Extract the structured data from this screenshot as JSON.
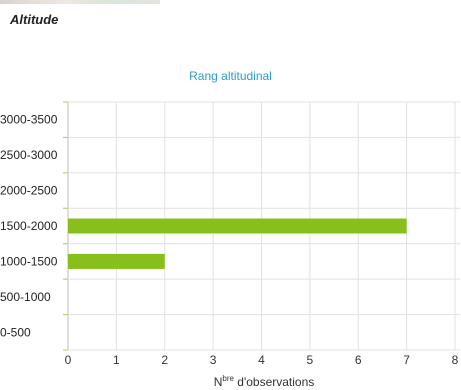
{
  "header": {
    "section_title": "Altitude"
  },
  "chart_data": {
    "type": "bar",
    "orientation": "horizontal",
    "title": "Rang altitudinal",
    "xlabel_prefix": "N",
    "xlabel_superscript": "bre",
    "xlabel_suffix": " d'observations",
    "ylabel": "",
    "categories": [
      "3000-3500",
      "2500-3000",
      "2000-2500",
      "1500-2000",
      "1000-1500",
      "500-1000",
      "0-500"
    ],
    "values": [
      0,
      0,
      0,
      7,
      2,
      0,
      0
    ],
    "xlim": [
      0,
      8
    ],
    "xticks": [
      0,
      1,
      2,
      3,
      4,
      5,
      6,
      7,
      8
    ],
    "grid": true,
    "bar_color": "#88bf1a",
    "title_color": "#2f9dc3"
  }
}
